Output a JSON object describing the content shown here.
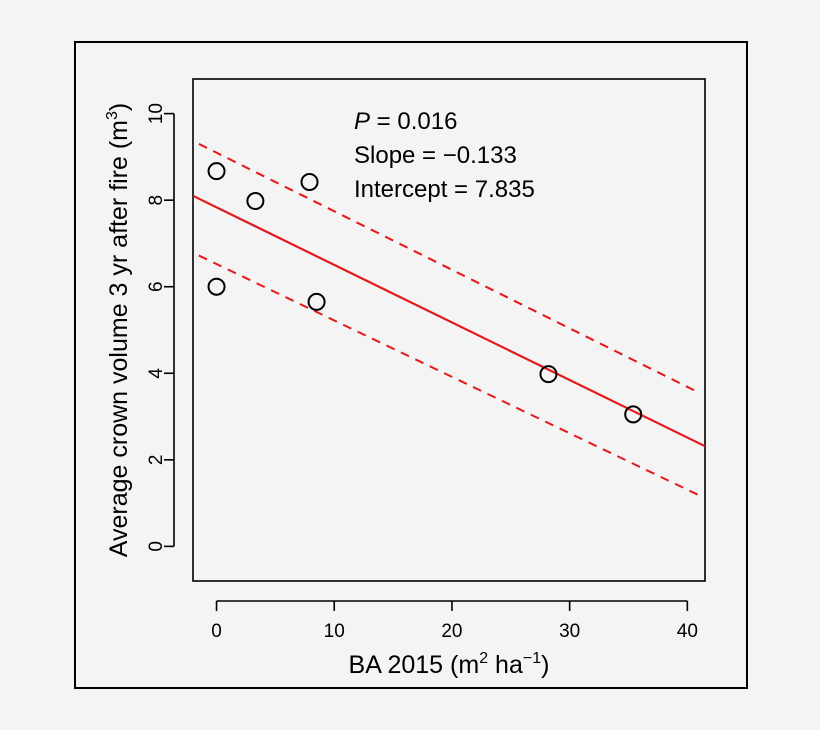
{
  "chart_data": {
    "type": "scatter",
    "title": "",
    "xlabel": {
      "prefix": "BA 2015 (m",
      "sup1": "2",
      "mid": " ha",
      "sup2": "−1",
      "suffix": ")"
    },
    "ylabel": {
      "prefix": "Average crown volume 3 yr after fire (m",
      "sup": "3",
      "suffix": ")"
    },
    "xlim": [
      -2,
      41.5
    ],
    "ylim": [
      -0.8,
      10.8
    ],
    "xticks": [
      0,
      10,
      20,
      30,
      40
    ],
    "yticks": [
      0,
      2,
      4,
      6,
      8,
      10
    ],
    "points": [
      {
        "x": 0,
        "y": 8.67
      },
      {
        "x": 0,
        "y": 6.0
      },
      {
        "x": 3.3,
        "y": 7.98
      },
      {
        "x": 7.9,
        "y": 8.42
      },
      {
        "x": 8.5,
        "y": 5.65
      },
      {
        "x": 28.2,
        "y": 3.98
      },
      {
        "x": 35.4,
        "y": 3.05
      }
    ],
    "fit": {
      "intercept": 7.835,
      "slope": -0.133,
      "x_range": [
        -2,
        41.5
      ]
    },
    "ci_upper": [
      {
        "x": -1.5,
        "y": 9.3
      },
      {
        "x": 41.0,
        "y": 3.55
      }
    ],
    "ci_lower": [
      {
        "x": -1.5,
        "y": 6.72
      },
      {
        "x": 41.0,
        "y": 1.18
      }
    ],
    "annotation": {
      "p_label": "P",
      "p_value": " = 0.016",
      "slope_text": "Slope = −0.133",
      "intercept_text": "Intercept = 7.835"
    },
    "colors": {
      "points": "#000000",
      "fit": "#e31a1c",
      "axes": "#000000",
      "frame": "#000000"
    }
  }
}
